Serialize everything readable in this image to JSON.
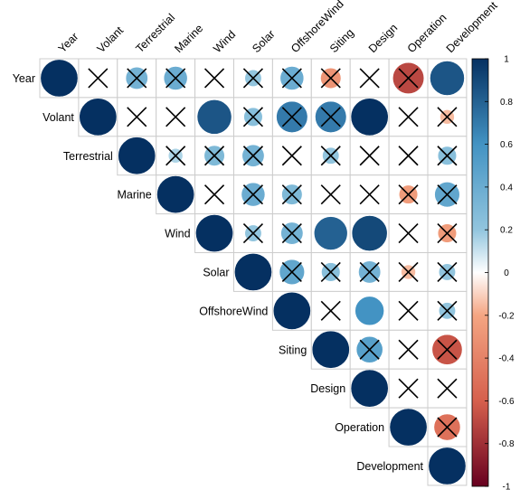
{
  "chart_data": {
    "type": "heatmap",
    "variant": "correlation-matrix-upper-triangle",
    "marker": "circle",
    "title": "",
    "variables": [
      "Year",
      "Volant",
      "Terrestrial",
      "Marine",
      "Wind",
      "Solar",
      "OffshoreWind",
      "Siting",
      "Design",
      "Operation",
      "Development"
    ],
    "values": [
      [
        1.0,
        0.0,
        0.35,
        0.4,
        0.0,
        0.2,
        0.4,
        -0.3,
        0.0,
        -0.7,
        0.85
      ],
      [
        null,
        1.0,
        0.0,
        0.0,
        0.85,
        0.25,
        0.7,
        0.7,
        1.0,
        0.0,
        -0.15
      ],
      [
        null,
        null,
        1.0,
        0.15,
        0.3,
        0.35,
        0.0,
        0.2,
        0.0,
        0.0,
        0.25
      ],
      [
        null,
        null,
        null,
        1.0,
        0.0,
        0.4,
        0.3,
        0.0,
        0.0,
        -0.25,
        0.45
      ],
      [
        null,
        null,
        null,
        null,
        1.0,
        0.2,
        0.35,
        0.8,
        0.9,
        0.0,
        -0.25
      ],
      [
        null,
        null,
        null,
        null,
        null,
        1.0,
        0.45,
        0.25,
        0.35,
        -0.15,
        0.2
      ],
      [
        null,
        null,
        null,
        null,
        null,
        null,
        1.0,
        0.0,
        0.6,
        0.0,
        0.2
      ],
      [
        null,
        null,
        null,
        null,
        null,
        null,
        null,
        1.0,
        0.5,
        0.0,
        -0.65
      ],
      [
        null,
        null,
        null,
        null,
        null,
        null,
        null,
        null,
        1.0,
        0.0,
        0.0
      ],
      [
        null,
        null,
        null,
        null,
        null,
        null,
        null,
        null,
        null,
        1.0,
        -0.5
      ],
      [
        null,
        null,
        null,
        null,
        null,
        null,
        null,
        null,
        null,
        null,
        1.0
      ]
    ],
    "crossed": [
      [
        false,
        true,
        true,
        true,
        true,
        true,
        true,
        true,
        true,
        true,
        false
      ],
      [
        false,
        false,
        true,
        true,
        false,
        true,
        true,
        true,
        false,
        true,
        true
      ],
      [
        false,
        false,
        false,
        true,
        true,
        true,
        true,
        true,
        true,
        true,
        true
      ],
      [
        false,
        false,
        false,
        false,
        true,
        true,
        true,
        true,
        true,
        true,
        true
      ],
      [
        false,
        false,
        false,
        false,
        false,
        true,
        true,
        false,
        false,
        true,
        true
      ],
      [
        false,
        false,
        false,
        false,
        false,
        false,
        true,
        true,
        true,
        true,
        true
      ],
      [
        false,
        false,
        false,
        false,
        false,
        false,
        false,
        true,
        false,
        true,
        true
      ],
      [
        false,
        false,
        false,
        false,
        false,
        false,
        false,
        false,
        true,
        true,
        true
      ],
      [
        false,
        false,
        false,
        false,
        false,
        false,
        false,
        false,
        false,
        true,
        true
      ],
      [
        false,
        false,
        false,
        false,
        false,
        false,
        false,
        false,
        false,
        false,
        true
      ],
      [
        false,
        false,
        false,
        false,
        false,
        false,
        false,
        false,
        false,
        false,
        false
      ]
    ],
    "legend": {
      "placement": "right",
      "range": [
        -1,
        1
      ],
      "ticks": [
        "1",
        "0.8",
        "0.6",
        "0.4",
        "0.2",
        "0",
        "-0.2",
        "-0.4",
        "-0.6",
        "-0.8",
        "-1"
      ]
    },
    "colors": {
      "negative_end": "#67001f",
      "neg_mid": "#d6604d",
      "neg_light": "#f4a582",
      "neutral": "#ffffff",
      "pos_light": "#92c5de",
      "pos_mid": "#4393c3",
      "positive_end": "#053061",
      "grid": "#cccccc",
      "cross": "#000000"
    }
  }
}
